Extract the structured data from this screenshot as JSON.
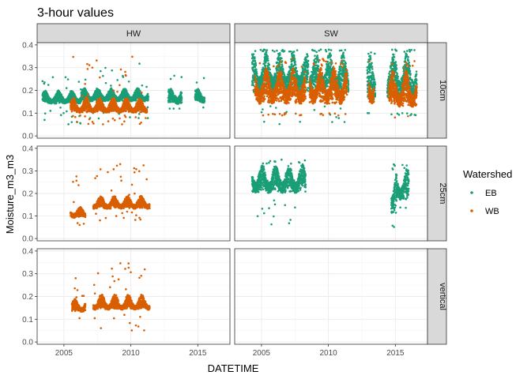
{
  "chart_data": {
    "type": "scatter",
    "title": "3-hour values",
    "xlabel": "DATETIME",
    "ylabel": "Moisture_m3_m3",
    "xlim": [
      2003.0,
      2017.4
    ],
    "ylim": [
      -0.01,
      0.41
    ],
    "x_ticks": [
      2005,
      2010,
      2015
    ],
    "y_ticks": [
      0.0,
      0.1,
      0.2,
      0.3,
      0.4
    ],
    "y_tick_labels": [
      "0.0",
      "0.1",
      "0.2",
      "0.3",
      "0.4"
    ],
    "grid": true,
    "facet_cols": [
      "HW",
      "SW"
    ],
    "facet_rows": [
      "10cm",
      "25cm",
      "vertical"
    ],
    "legend": {
      "title": "Watershed",
      "position": "right",
      "entries": [
        {
          "name": "EB",
          "color": "#1B9E77"
        },
        {
          "name": "WB",
          "color": "#D95F02"
        }
      ]
    },
    "panels": [
      {
        "col": "HW",
        "row": "10cm",
        "series": [
          {
            "name": "EB",
            "segments": [
              {
                "x": [
                  2003.4,
                  2006.3
                ],
                "low": 0.13,
                "mid": 0.16,
                "high": 0.2,
                "spike_lo": 0.05,
                "spike_hi": 0.26
              },
              {
                "x": [
                  2006.3,
                  2011.3
                ],
                "low": 0.14,
                "mid": 0.17,
                "high": 0.21,
                "spike_lo": 0.06,
                "spike_hi": 0.32
              },
              {
                "x": [
                  2012.8,
                  2013.8
                ],
                "low": 0.12,
                "mid": 0.17,
                "high": 0.21,
                "spike_lo": 0.12,
                "spike_hi": 0.28
              },
              {
                "x": [
                  2014.8,
                  2015.5
                ],
                "low": 0.13,
                "mid": 0.17,
                "high": 0.21,
                "spike_lo": 0.12,
                "spike_hi": 0.26
              }
            ]
          },
          {
            "name": "WB",
            "segments": [
              {
                "x": [
                  2005.5,
                  2011.2
                ],
                "low": 0.09,
                "mid": 0.12,
                "high": 0.17,
                "spike_lo": 0.05,
                "spike_hi": 0.35
              }
            ]
          }
        ]
      },
      {
        "col": "SW",
        "row": "10cm",
        "series": [
          {
            "name": "EB",
            "segments": [
              {
                "x": [
                  2004.3,
                  2008.5
                ],
                "low": 0.14,
                "mid": 0.26,
                "high": 0.37,
                "spike_lo": 0.05,
                "spike_hi": 0.38
              },
              {
                "x": [
                  2008.6,
                  2011.5
                ],
                "low": 0.14,
                "mid": 0.26,
                "high": 0.37,
                "spike_lo": 0.06,
                "spike_hi": 0.38
              },
              {
                "x": [
                  2012.9,
                  2013.5
                ],
                "low": 0.1,
                "mid": 0.24,
                "high": 0.36,
                "spike_lo": 0.1,
                "spike_hi": 0.37
              },
              {
                "x": [
                  2014.4,
                  2016.6
                ],
                "low": 0.1,
                "mid": 0.24,
                "high": 0.37,
                "spike_lo": 0.09,
                "spike_hi": 0.38
              }
            ]
          },
          {
            "name": "WB",
            "segments": [
              {
                "x": [
                  2004.5,
                  2008.3
                ],
                "low": 0.1,
                "mid": 0.2,
                "high": 0.3,
                "spike_lo": 0.09,
                "spike_hi": 0.34
              },
              {
                "x": [
                  2008.6,
                  2011.4
                ],
                "low": 0.1,
                "mid": 0.2,
                "high": 0.3,
                "spike_lo": 0.09,
                "spike_hi": 0.34
              },
              {
                "x": [
                  2013.0,
                  2013.4
                ],
                "low": 0.1,
                "mid": 0.2,
                "high": 0.3,
                "spike_lo": 0.09,
                "spike_hi": 0.33
              },
              {
                "x": [
                  2014.5,
                  2016.6
                ],
                "low": 0.09,
                "mid": 0.18,
                "high": 0.29,
                "spike_lo": 0.08,
                "spike_hi": 0.33
              }
            ]
          }
        ]
      },
      {
        "col": "HW",
        "row": "25cm",
        "series": [
          {
            "name": "WB",
            "segments": [
              {
                "x": [
                  2005.5,
                  2006.6
                ],
                "low": 0.08,
                "mid": 0.11,
                "high": 0.14,
                "spike_lo": 0.06,
                "spike_hi": 0.28
              },
              {
                "x": [
                  2007.2,
                  2011.4
                ],
                "low": 0.12,
                "mid": 0.15,
                "high": 0.19,
                "spike_lo": 0.08,
                "spike_hi": 0.34
              }
            ]
          }
        ]
      },
      {
        "col": "SW",
        "row": "25cm",
        "series": [
          {
            "name": "EB",
            "segments": [
              {
                "x": [
                  2004.3,
                  2008.3
                ],
                "low": 0.17,
                "mid": 0.25,
                "high": 0.33,
                "spike_lo": 0.06,
                "spike_hi": 0.35
              },
              {
                "x": [
                  2014.7,
                  2015.1
                ],
                "low": 0.06,
                "mid": 0.18,
                "high": 0.3,
                "spike_lo": 0.05,
                "spike_hi": 0.33
              },
              {
                "x": [
                  2015.1,
                  2016.0
                ],
                "low": 0.14,
                "mid": 0.22,
                "high": 0.31,
                "spike_lo": 0.12,
                "spike_hi": 0.34
              }
            ]
          }
        ]
      },
      {
        "col": "HW",
        "row": "vertical",
        "series": [
          {
            "name": "WB",
            "segments": [
              {
                "x": [
                  2005.6,
                  2006.6
                ],
                "low": 0.12,
                "mid": 0.15,
                "high": 0.19,
                "spike_lo": 0.08,
                "spike_hi": 0.31
              },
              {
                "x": [
                  2007.2,
                  2011.4
                ],
                "low": 0.13,
                "mid": 0.16,
                "high": 0.21,
                "spike_lo": 0.05,
                "spike_hi": 0.35
              }
            ]
          }
        ]
      },
      {
        "col": "SW",
        "row": "vertical",
        "series": []
      }
    ]
  }
}
